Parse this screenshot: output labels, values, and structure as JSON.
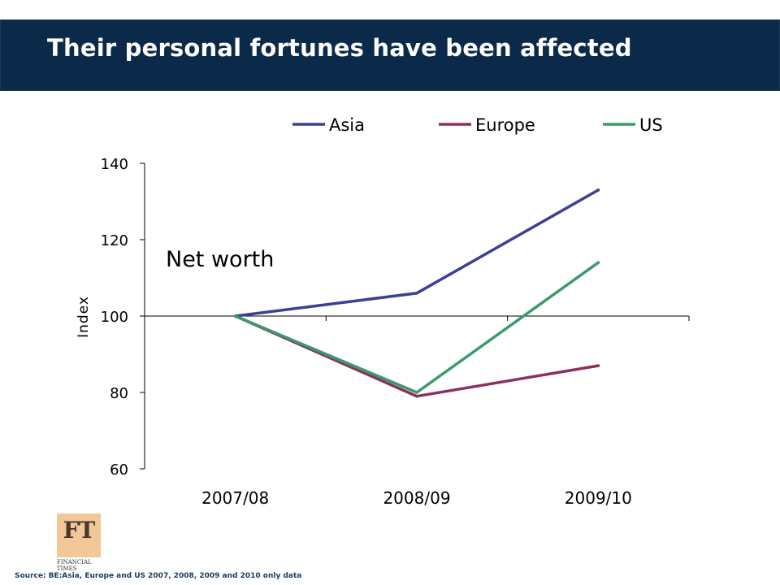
{
  "slide": {
    "title": "Their personal fortunes have been affected",
    "source": "Source: BE:Asia, Europe and US 2007, 2008, 2009 and 2010 only data",
    "logo_mark": "FT",
    "logo_text": "FINANCIAL TIMES"
  },
  "colors": {
    "title_bar": "#0b2a4a",
    "asia": "#3b3f96",
    "europe": "#8b3060",
    "us": "#3a9a6a"
  },
  "chart_data": {
    "type": "line",
    "title": "",
    "annotation": "Net worth",
    "xlabel": "",
    "ylabel": "Index",
    "categories": [
      "2007/08",
      "2008/09",
      "2009/10"
    ],
    "ylim": [
      60,
      140
    ],
    "yticks": [
      60,
      80,
      100,
      120,
      140
    ],
    "ytick_labels": [
      "60",
      "80",
      "100",
      "120",
      "140"
    ],
    "legend_position": "top",
    "series": [
      {
        "name": "Asia",
        "values": [
          100,
          106,
          133
        ],
        "color": "#3b3f96"
      },
      {
        "name": "Europe",
        "values": [
          100,
          79,
          87
        ],
        "color": "#8b3060"
      },
      {
        "name": "US",
        "values": [
          100,
          80,
          114
        ],
        "color": "#3a9a6a"
      }
    ]
  }
}
